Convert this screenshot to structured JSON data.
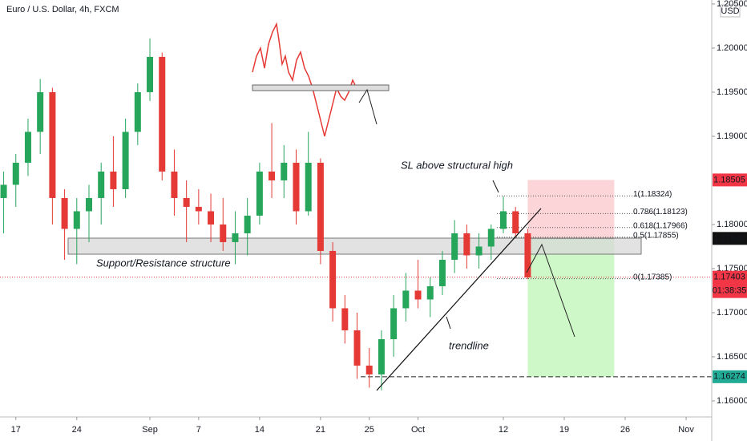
{
  "header": {
    "title": "Euro / U.S. Dollar, 4h, FXCM",
    "currency": "USD"
  },
  "chart_data": {
    "type": "candlestick",
    "title": "Euro / U.S. Dollar, 4h, FXCM",
    "up_color": "#26a65b",
    "down_color": "#e53935",
    "x": [
      -1,
      0,
      1,
      2,
      3,
      4,
      5,
      6,
      7,
      8,
      9,
      10,
      11,
      12,
      13,
      14,
      15,
      16,
      17,
      18,
      19,
      20,
      21,
      22,
      23,
      24,
      25,
      26,
      27,
      28,
      29,
      30,
      31,
      32,
      33,
      34,
      35,
      36,
      37,
      38,
      39,
      40,
      41,
      42
    ],
    "open": [
      1.183,
      1.1845,
      1.187,
      1.1905,
      1.195,
      1.183,
      1.1795,
      1.1815,
      1.183,
      1.186,
      1.184,
      1.1905,
      1.195,
      1.199,
      1.186,
      1.183,
      1.182,
      1.1815,
      1.18,
      1.178,
      1.179,
      1.181,
      1.186,
      1.185,
      1.187,
      1.1815,
      1.187,
      1.177,
      1.1705,
      1.168,
      1.164,
      1.163,
      1.167,
      1.1705,
      1.1725,
      1.1715,
      1.173,
      1.176,
      1.179,
      1.1765,
      1.1775,
      1.1795,
      1.1815,
      1.179
    ],
    "high": [
      1.186,
      1.188,
      1.192,
      1.1965,
      1.1955,
      1.184,
      1.183,
      1.1845,
      1.187,
      1.19,
      1.192,
      1.196,
      1.2011,
      1.1995,
      1.1885,
      1.185,
      1.184,
      1.1835,
      1.183,
      1.1815,
      1.183,
      1.187,
      1.1915,
      1.189,
      1.1885,
      1.1905,
      1.1875,
      1.178,
      1.172,
      1.17,
      1.166,
      1.168,
      1.172,
      1.1745,
      1.176,
      1.174,
      1.177,
      1.1805,
      1.18,
      1.179,
      1.18,
      1.1832,
      1.182,
      1.1795
    ],
    "low": [
      1.179,
      1.182,
      1.1855,
      1.188,
      1.18,
      1.176,
      1.1755,
      1.178,
      1.18,
      1.182,
      1.183,
      1.189,
      1.194,
      1.185,
      1.181,
      1.178,
      1.18,
      1.178,
      1.177,
      1.1755,
      1.1765,
      1.18,
      1.183,
      1.183,
      1.18,
      1.181,
      1.1755,
      1.169,
      1.1665,
      1.1625,
      1.1615,
      1.1612,
      1.165,
      1.169,
      1.1705,
      1.1695,
      1.172,
      1.1745,
      1.175,
      1.175,
      1.176,
      1.179,
      1.1785,
      1.1738
    ],
    "close": [
      1.1845,
      1.187,
      1.1905,
      1.195,
      1.183,
      1.1795,
      1.1815,
      1.183,
      1.186,
      1.184,
      1.1905,
      1.195,
      1.199,
      1.186,
      1.183,
      1.182,
      1.1815,
      1.18,
      1.178,
      1.179,
      1.181,
      1.186,
      1.185,
      1.187,
      1.1815,
      1.187,
      1.177,
      1.1705,
      1.168,
      1.164,
      1.163,
      1.167,
      1.1705,
      1.1725,
      1.1715,
      1.173,
      1.176,
      1.179,
      1.1765,
      1.1775,
      1.1795,
      1.1815,
      1.179,
      1.174
    ],
    "xlim": [
      -1.3,
      57.1
    ],
    "ylim": [
      1.15818,
      1.20545
    ],
    "xticks": [
      {
        "value": 0,
        "label": "17"
      },
      {
        "value": 5,
        "label": "24"
      },
      {
        "value": 11,
        "label": "Sep"
      },
      {
        "value": 15,
        "label": "7"
      },
      {
        "value": 20,
        "label": "14"
      },
      {
        "value": 25,
        "label": "21"
      },
      {
        "value": 29,
        "label": "25"
      },
      {
        "value": 33,
        "label": "Oct"
      },
      {
        "value": 40,
        "label": "12"
      },
      {
        "value": 45,
        "label": "19"
      },
      {
        "value": 50,
        "label": "26"
      },
      {
        "value": 55,
        "label": "Nov"
      }
    ],
    "yticks": [
      {
        "value": 1.205,
        "label": "1.20500"
      },
      {
        "value": 1.2,
        "label": "1.20000"
      },
      {
        "value": 1.195,
        "label": "1.19500"
      },
      {
        "value": 1.19,
        "label": "1.19000"
      },
      {
        "value": 1.18,
        "label": "1.18000"
      },
      {
        "value": 1.175,
        "label": "1.17500"
      },
      {
        "value": 1.17,
        "label": "1.17000"
      },
      {
        "value": 1.165,
        "label": "1.16500"
      },
      {
        "value": 1.16,
        "label": "1.16000"
      }
    ],
    "position": {
      "stop": 1.18505,
      "entry": 1.17842,
      "last": 1.17403,
      "target": 1.16274,
      "countdown": "01:38:35"
    },
    "fib_levels": [
      {
        "label": "1(1.18324)",
        "value": 1.18324
      },
      {
        "label": "0.786(1.18123)",
        "value": 1.18123
      },
      {
        "label": "0.618(1.17966)",
        "value": 1.17966
      },
      {
        "label": "0.5(1.17855)",
        "value": 1.17855
      },
      {
        "label": "0(1.17385)",
        "value": 1.17385
      }
    ],
    "annotations": [
      "SL above structural high",
      "Support/Resistance structure",
      "trendline"
    ]
  }
}
